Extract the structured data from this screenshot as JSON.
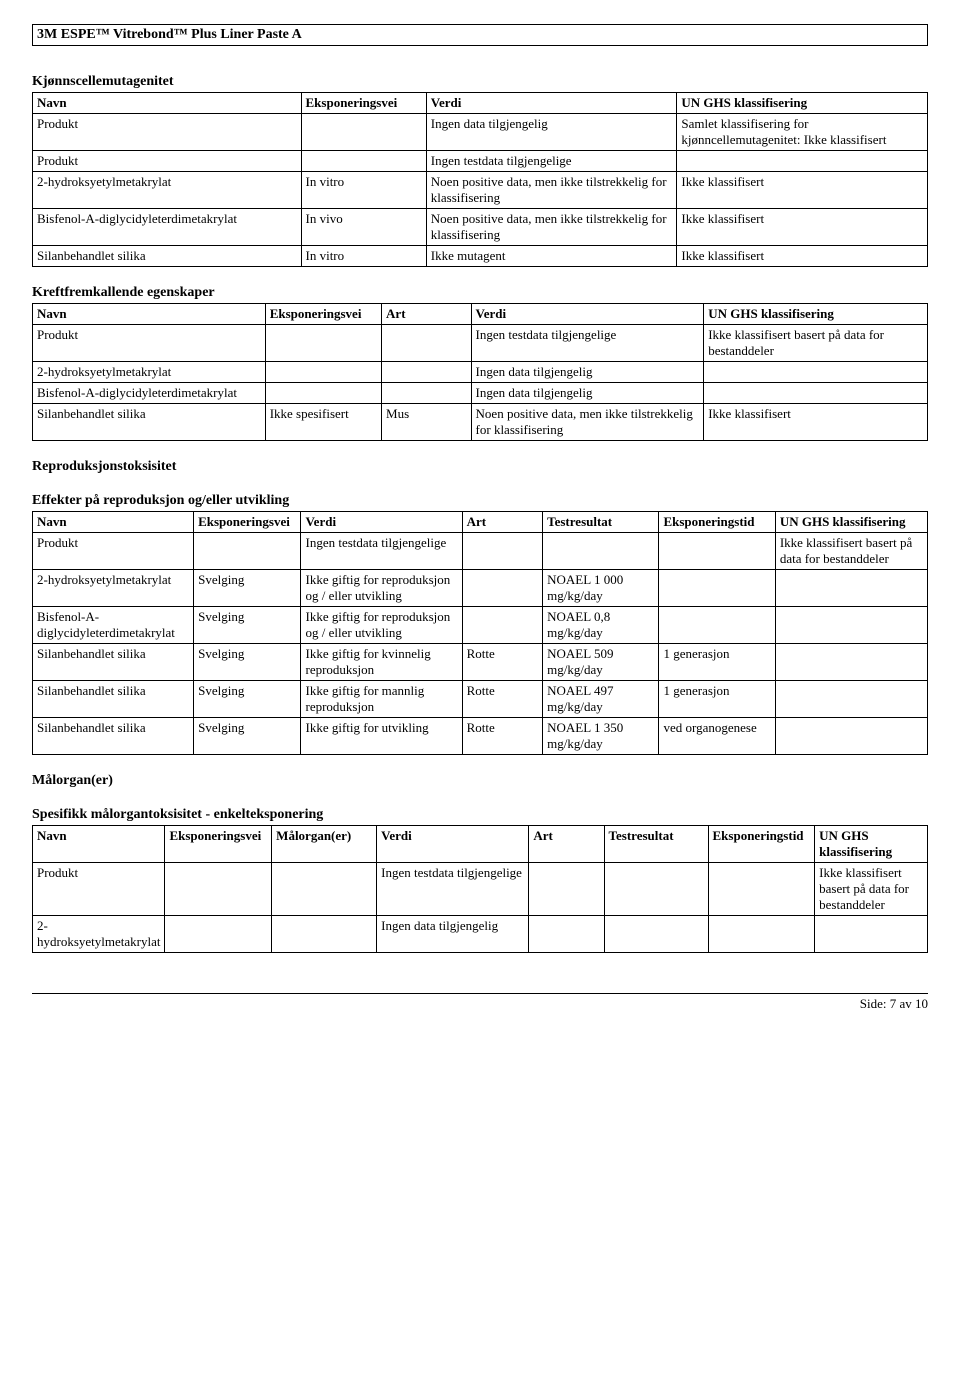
{
  "doc_title": "3M ESPE™ Vitrebond™ Plus Liner Paste A",
  "table1": {
    "title": "Kjønnscellemutagenitet",
    "headers": [
      "Navn",
      "Eksponeringsvei",
      "Verdi",
      "UN GHS klassifisering"
    ],
    "rows": [
      [
        "Produkt",
        "",
        "Ingen data tilgjengelig",
        "Samlet klassifisering for kjønncellemutagenitet: Ikke klassifisert"
      ],
      [
        "Produkt",
        "",
        "Ingen testdata tilgjengelige",
        ""
      ],
      [
        "2-hydroksyetylmetakrylat",
        "In vitro",
        "Noen positive data, men ikke tilstrekkelig for klassifisering",
        "Ikke klassifisert"
      ],
      [
        "Bisfenol-A-diglycidyleterdimetakrylat",
        "In vivo",
        "Noen positive data, men ikke tilstrekkelig for klassifisering",
        "Ikke klassifisert"
      ],
      [
        "Silanbehandlet silika",
        "In vitro",
        "Ikke mutagent",
        "Ikke klassifisert"
      ]
    ]
  },
  "table2": {
    "title": "Kreftfremkallende egenskaper",
    "headers": [
      "Navn",
      "Eksponeringsvei",
      "Art",
      "Verdi",
      "UN GHS klassifisering"
    ],
    "rows": [
      [
        "Produkt",
        "",
        "",
        "Ingen testdata tilgjengelige",
        "Ikke klassifisert basert på data for bestanddeler"
      ],
      [
        "2-hydroksyetylmetakrylat",
        "",
        "",
        "Ingen data tilgjengelig",
        ""
      ],
      [
        "Bisfenol-A-diglycidyleterdimetakrylat",
        "",
        "",
        "Ingen data tilgjengelig",
        ""
      ],
      [
        "Silanbehandlet silika",
        "Ikke spesifisert",
        "Mus",
        "Noen positive data, men ikke tilstrekkelig for klassifisering",
        "Ikke klassifisert"
      ]
    ]
  },
  "section_repro": "Reproduksjonstoksisitet",
  "table3": {
    "title": "Effekter på reproduksjon og/eller utvikling",
    "headers": [
      "Navn",
      "Eksponeringsvei",
      "Verdi",
      "Art",
      "Testresultat",
      "Eksponeringstid",
      "UN GHS klassifisering"
    ],
    "rows": [
      [
        "Produkt",
        "",
        "Ingen testdata tilgjengelige",
        "",
        "",
        "",
        "Ikke klassifisert basert på data for bestanddeler"
      ],
      [
        "2-hydroksyetylmetakrylat",
        "Svelging",
        "Ikke giftig for reproduksjon og / eller utvikling",
        "",
        "NOAEL 1 000 mg/kg/day",
        "",
        ""
      ],
      [
        "Bisfenol-A-diglycidyleterdimetakrylat",
        "Svelging",
        "Ikke giftig for reproduksjon og / eller utvikling",
        "",
        "NOAEL 0,8 mg/kg/day",
        "",
        ""
      ],
      [
        "Silanbehandlet silika",
        "Svelging",
        "Ikke giftig for kvinnelig reproduksjon",
        "Rotte",
        "NOAEL 509 mg/kg/day",
        "1 generasjon",
        ""
      ],
      [
        "Silanbehandlet silika",
        "Svelging",
        "Ikke giftig for mannlig reproduksjon",
        "Rotte",
        "NOAEL 497 mg/kg/day",
        "1 generasjon",
        ""
      ],
      [
        "Silanbehandlet silika",
        "Svelging",
        "Ikke giftig for utvikling",
        "Rotte",
        "NOAEL 1 350 mg/kg/day",
        "ved organogenese",
        ""
      ]
    ]
  },
  "section_targetorgan": "Målorgan(er)",
  "table4": {
    "title": "Spesifikk målorgantoksisitet - enkelteksponering",
    "headers": [
      "Navn",
      "Eksponeringsvei",
      "Målorgan(er)",
      "Verdi",
      "Art",
      "Testresultat",
      "Eksponeringstid",
      "UN GHS klassifisering"
    ],
    "rows": [
      [
        "Produkt",
        "",
        "",
        "Ingen testdata tilgjengelige",
        "",
        "",
        "",
        "Ikke klassifisert basert på data for bestanddeler"
      ],
      [
        "2-hydroksyetylmetakrylat",
        "",
        "",
        "Ingen data tilgjengelig",
        "",
        "",
        "",
        ""
      ]
    ]
  },
  "footer": "Side: 7 av  10",
  "col_widths": {
    "t1": [
      "30%",
      "14%",
      "28%",
      "28%"
    ],
    "t2": [
      "26%",
      "13%",
      "10%",
      "26%",
      "25%"
    ],
    "t3": [
      "18%",
      "12%",
      "18%",
      "9%",
      "13%",
      "13%",
      "17%"
    ],
    "t4": [
      "12%",
      "12%",
      "12%",
      "18%",
      "9%",
      "12%",
      "12%",
      "13%"
    ]
  }
}
